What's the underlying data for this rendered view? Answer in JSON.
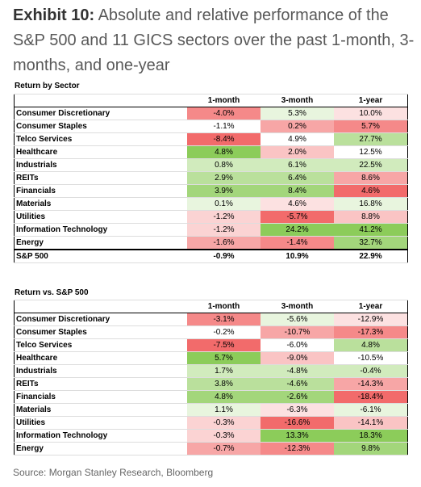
{
  "header": {
    "label": "Exhibit 10:",
    "title": "Absolute and relative performance of the S&P 500 and 11 GICS sectors over the past 1-month, 3-months, and one-year"
  },
  "tables": [
    {
      "caption": "Return by Sector",
      "columns": [
        "1-month",
        "3-month",
        "1-year"
      ],
      "rows": [
        {
          "label": "Consumer Discretionary",
          "cells": [
            "-4.0%",
            "5.3%",
            "10.0%"
          ]
        },
        {
          "label": "Consumer Staples",
          "cells": [
            "-1.1%",
            "0.2%",
            "5.7%"
          ]
        },
        {
          "label": "Telco Services",
          "cells": [
            "-8.4%",
            "4.9%",
            "27.7%"
          ]
        },
        {
          "label": "Healthcare",
          "cells": [
            "4.8%",
            "2.0%",
            "12.5%"
          ]
        },
        {
          "label": "Industrials",
          "cells": [
            "0.8%",
            "6.1%",
            "22.5%"
          ]
        },
        {
          "label": "REITs",
          "cells": [
            "2.9%",
            "6.4%",
            "8.6%"
          ]
        },
        {
          "label": "Financials",
          "cells": [
            "3.9%",
            "8.4%",
            "4.6%"
          ]
        },
        {
          "label": "Materials",
          "cells": [
            "0.1%",
            "4.6%",
            "16.8%"
          ]
        },
        {
          "label": "Utilities",
          "cells": [
            "-1.2%",
            "-5.7%",
            "8.8%"
          ]
        },
        {
          "label": "Information Technology",
          "cells": [
            "-1.2%",
            "24.2%",
            "41.2%"
          ]
        },
        {
          "label": "Energy",
          "cells": [
            "-1.6%",
            "-1.4%",
            "32.7%"
          ]
        }
      ],
      "total": {
        "label": "S&P 500",
        "cells": [
          "-0.9%",
          "10.9%",
          "22.9%"
        ]
      }
    },
    {
      "caption": "Return vs. S&P 500",
      "columns": [
        "1-month",
        "3-month",
        "1-year"
      ],
      "rows": [
        {
          "label": "Consumer Discretionary",
          "cells": [
            "-3.1%",
            "-5.6%",
            "-12.9%"
          ]
        },
        {
          "label": "Consumer Staples",
          "cells": [
            "-0.2%",
            "-10.7%",
            "-17.3%"
          ]
        },
        {
          "label": "Telco Services",
          "cells": [
            "-7.5%",
            "-6.0%",
            "4.8%"
          ]
        },
        {
          "label": "Healthcare",
          "cells": [
            "5.7%",
            "-9.0%",
            "-10.5%"
          ]
        },
        {
          "label": "Industrials",
          "cells": [
            "1.7%",
            "-4.8%",
            "-0.4%"
          ]
        },
        {
          "label": "REITs",
          "cells": [
            "3.8%",
            "-4.6%",
            "-14.3%"
          ]
        },
        {
          "label": "Financials",
          "cells": [
            "4.8%",
            "-2.6%",
            "-18.4%"
          ]
        },
        {
          "label": "Materials",
          "cells": [
            "1.1%",
            "-6.3%",
            "-6.1%"
          ]
        },
        {
          "label": "Utilities",
          "cells": [
            "-0.3%",
            "-16.6%",
            "-14.1%"
          ]
        },
        {
          "label": "Information Technology",
          "cells": [
            "-0.3%",
            "13.3%",
            "18.3%"
          ]
        },
        {
          "label": "Energy",
          "cells": [
            "-0.7%",
            "-12.3%",
            "9.8%"
          ]
        }
      ]
    }
  ],
  "source": "Source: Morgan Stanley Research, Bloomberg"
}
